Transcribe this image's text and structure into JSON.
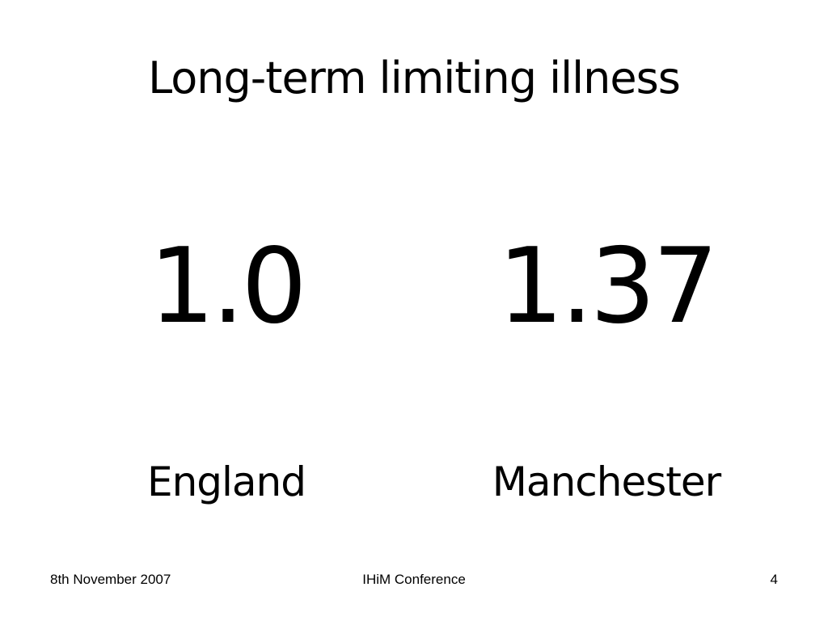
{
  "slide": {
    "title": "Long-term limiting illness",
    "items": [
      {
        "value": "1.0",
        "label": "England"
      },
      {
        "value": "1.37",
        "label": "Manchester"
      }
    ],
    "footer": {
      "date": "8th November 2007",
      "event": "IHiM Conference",
      "page_number": "4"
    }
  }
}
